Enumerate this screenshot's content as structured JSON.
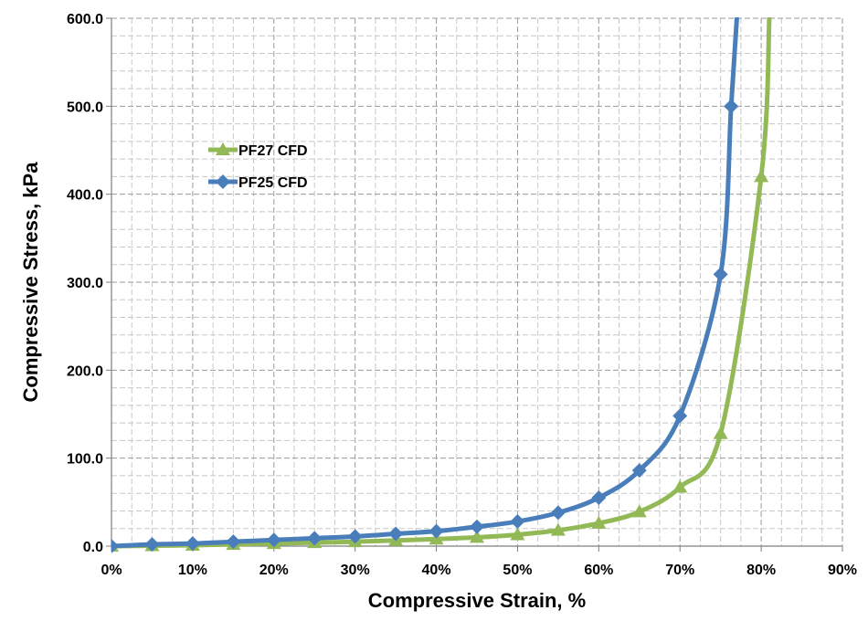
{
  "chart_data": {
    "type": "line",
    "xlabel": "Compressive Strain, %",
    "ylabel": "Compressive Stress, kPa",
    "xlim": [
      0,
      90
    ],
    "ylim": [
      0,
      600
    ],
    "x_ticks": [
      "0%",
      "10%",
      "20%",
      "30%",
      "40%",
      "50%",
      "60%",
      "70%",
      "80%",
      "90%"
    ],
    "y_ticks": [
      "0.0",
      "100.0",
      "200.0",
      "300.0",
      "400.0",
      "500.0",
      "600.0"
    ],
    "grid": "dashed major and minor",
    "legend_position": "upper-left inside plot",
    "series": [
      {
        "name": "PF27 CFD",
        "color": "#93b956",
        "marker": "triangle",
        "x": [
          0,
          5,
          10,
          15,
          20,
          25,
          30,
          35,
          40,
          45,
          50,
          55,
          60,
          65,
          70,
          75,
          80,
          81
        ],
        "y": [
          0,
          0.5,
          1,
          2,
          3,
          4,
          5,
          6.5,
          8,
          10,
          13,
          18,
          26,
          39,
          67,
          128,
          420,
          600
        ]
      },
      {
        "name": "PF25 CFD",
        "color": "#4a7ebb",
        "marker": "diamond",
        "x": [
          0,
          5,
          10,
          15,
          20,
          25,
          30,
          35,
          40,
          45,
          50,
          55,
          60,
          65,
          70,
          75,
          76.3,
          77
        ],
        "y": [
          0,
          2,
          3,
          5,
          7,
          9,
          11,
          14,
          17,
          22,
          28,
          38,
          55,
          86,
          148,
          309,
          500,
          600
        ]
      }
    ]
  }
}
